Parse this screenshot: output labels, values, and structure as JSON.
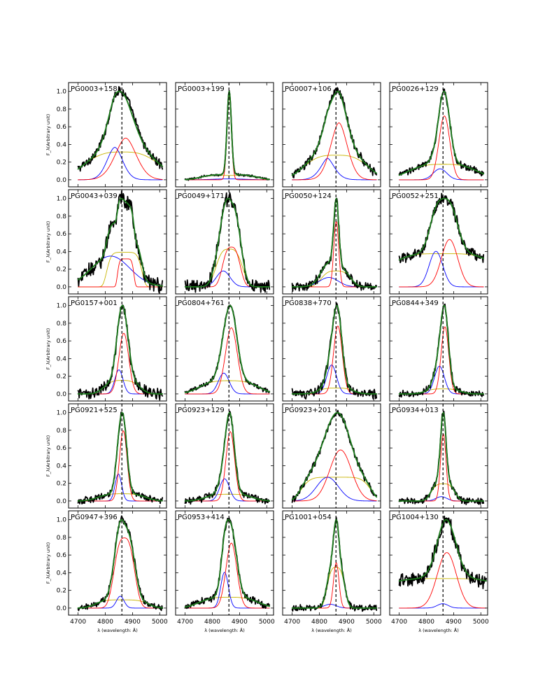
{
  "figure": {
    "xlabel": "λ (wavelength: Å)",
    "ylabel": "F_λ(Arbitrary unit)",
    "xticks": [
      4700,
      4800,
      4900,
      5000
    ],
    "yticks": [
      "0.0",
      "0.2",
      "0.4",
      "0.6",
      "0.8",
      "1.0"
    ],
    "colors": {
      "data": "#000000",
      "fit_total": "#1b7a1b",
      "component_red": "#ff0000",
      "component_blue": "#0000ff",
      "component_yellow": "#c8b400",
      "marker_line": "#000000"
    }
  },
  "chart_data": {
    "type": "line",
    "layout": "grid 5 rows x 4 columns of spectral fit panels",
    "xlim": [
      4665,
      5025
    ],
    "ylim": [
      -0.08,
      1.1
    ],
    "vertical_dashed_line_at": 4861,
    "xlabel": "λ (wavelength: Å)",
    "ylabel": "F_λ(Arbitrary unit)",
    "series_legend": [
      {
        "color": "black",
        "role": "observed spectrum"
      },
      {
        "color": "green",
        "role": "total fit"
      },
      {
        "color": "red",
        "role": "narrow/core component"
      },
      {
        "color": "blue",
        "role": "blue-shifted component"
      },
      {
        "color": "yellow",
        "role": "broad/very-broad component"
      }
    ],
    "panels": [
      {
        "name": "PG0003+158",
        "x0": 4700,
        "x1": 5010,
        "red": {
          "c": 4875,
          "w": 38,
          "h": 0.36,
          "s": 0.9
        },
        "blue": {
          "c": 4835,
          "w": 28,
          "h": 0.28,
          "s": 0.9
        },
        "yellow": {
          "c": 4861,
          "w": 130,
          "h": 0.24,
          "s": 1.5
        },
        "fwhm": 42,
        "noise": 0.04,
        "asym": 8
      },
      {
        "name": "PG0003+199",
        "x0": 4700,
        "x1": 5010,
        "red": {
          "c": 4862,
          "w": 8,
          "h": 0.95,
          "s": 1
        },
        "blue": {
          "c": 4862,
          "w": 60,
          "h": 0.01,
          "s": 1
        },
        "yellow": {
          "c": 4861,
          "w": 100,
          "h": 0.05,
          "s": 2
        },
        "fwhm": 9,
        "noise": 0.01,
        "asym": 0
      },
      {
        "name": "PG0007+106",
        "x0": 4700,
        "x1": 5010,
        "red": {
          "c": 4872,
          "w": 30,
          "h": 0.58,
          "s": 0.9
        },
        "blue": {
          "c": 4830,
          "w": 24,
          "h": 0.22,
          "s": 0.8
        },
        "yellow": {
          "c": 4861,
          "w": 110,
          "h": 0.25,
          "s": 1.6
        },
        "fwhm": 35,
        "noise": 0.04,
        "asym": 5
      },
      {
        "name": "PG0026+129",
        "x0": 4700,
        "x1": 5010,
        "red": {
          "c": 4866,
          "w": 20,
          "h": 0.7,
          "s": 1
        },
        "blue": {
          "c": 4850,
          "w": 25,
          "h": 0.12,
          "s": 1
        },
        "yellow": {
          "c": 4861,
          "w": 120,
          "h": 0.17,
          "s": 1.5
        },
        "fwhm": 22,
        "noise": 0.03,
        "asym": 0
      },
      {
        "name": "PG0043+039",
        "x0": 4700,
        "x1": 5010,
        "red": {
          "c": 4875,
          "w": 28,
          "h": 0.3,
          "s": 3
        },
        "blue": {
          "c": 4820,
          "w": 70,
          "h": 0.33,
          "s": 1
        },
        "yellow": {
          "c": 4870,
          "w": 60,
          "h": 0.37,
          "s": 3
        },
        "fwhm": 48,
        "noise": 0.07,
        "asym": 0
      },
      {
        "name": "PG0049+171",
        "x0": 4700,
        "x1": 5010,
        "red": {
          "c": 4870,
          "w": 30,
          "h": 0.4,
          "s": 1.4
        },
        "blue": {
          "c": 4840,
          "w": 25,
          "h": 0.16,
          "s": 1
        },
        "yellow": {
          "c": 4862,
          "w": 45,
          "h": 0.38,
          "s": 1.6
        },
        "fwhm": 30,
        "noise": 0.06,
        "asym": 0
      },
      {
        "name": "PG0050+124",
        "x0": 4700,
        "x1": 5010,
        "red": {
          "c": 4862,
          "w": 9,
          "h": 0.7,
          "s": 1
        },
        "blue": {
          "c": 4835,
          "w": 35,
          "h": 0.1,
          "s": 1
        },
        "yellow": {
          "c": 4861,
          "w": 50,
          "h": 0.17,
          "s": 1.6
        },
        "fwhm": 10,
        "noise": 0.04,
        "asym": 0
      },
      {
        "name": "PG0052+251",
        "x0": 4700,
        "x1": 5010,
        "red": {
          "c": 4885,
          "w": 30,
          "h": 0.4,
          "s": 1
        },
        "blue": {
          "c": 4835,
          "w": 25,
          "h": 0.3,
          "s": 1
        },
        "yellow": {
          "c": 4861,
          "w": 200,
          "h": 0.28,
          "s": 2
        },
        "fwhm": 35,
        "noise": 0.05,
        "asym": 0
      },
      {
        "name": "PG0157+001",
        "x0": 4700,
        "x1": 5010,
        "red": {
          "c": 4868,
          "w": 18,
          "h": 0.63,
          "s": 1
        },
        "blue": {
          "c": 4850,
          "w": 15,
          "h": 0.25,
          "s": 1
        },
        "yellow": {
          "c": 4861,
          "w": 60,
          "h": 0.14,
          "s": 1.6
        },
        "fwhm": 22,
        "noise": 0.05,
        "asym": 0
      },
      {
        "name": "PG0804+761",
        "x0": 4700,
        "x1": 5010,
        "red": {
          "c": 4870,
          "w": 22,
          "h": 0.7,
          "s": 1
        },
        "blue": {
          "c": 4842,
          "w": 20,
          "h": 0.22,
          "s": 1
        },
        "yellow": {
          "c": 4861,
          "w": 100,
          "h": 0.14,
          "s": 1.6
        },
        "fwhm": 24,
        "noise": 0.02,
        "asym": 0
      },
      {
        "name": "PG0838+770",
        "x0": 4700,
        "x1": 5010,
        "red": {
          "c": 4868,
          "w": 16,
          "h": 0.8,
          "s": 1
        },
        "blue": {
          "c": 4845,
          "w": 18,
          "h": 0.34,
          "s": 1
        },
        "yellow": {
          "c": 4861,
          "w": 60,
          "h": 0.07,
          "s": 1.6
        },
        "fwhm": 18,
        "noise": 0.04,
        "asym": 0
      },
      {
        "name": "PG0844+349",
        "x0": 4700,
        "x1": 5010,
        "red": {
          "c": 4868,
          "w": 14,
          "h": 0.8,
          "s": 1
        },
        "blue": {
          "c": 4848,
          "w": 18,
          "h": 0.33,
          "s": 1
        },
        "yellow": {
          "c": 4861,
          "w": 60,
          "h": 0.06,
          "s": 1.6
        },
        "fwhm": 18,
        "noise": 0.03,
        "asym": 0
      },
      {
        "name": "PG0921+525",
        "x0": 4700,
        "x1": 5010,
        "red": {
          "c": 4866,
          "w": 14,
          "h": 0.78,
          "s": 1
        },
        "blue": {
          "c": 4848,
          "w": 12,
          "h": 0.3,
          "s": 1
        },
        "yellow": {
          "c": 4861,
          "w": 80,
          "h": 0.08,
          "s": 1.6
        },
        "fwhm": 16,
        "noise": 0.03,
        "asym": 0
      },
      {
        "name": "PG0923+129",
        "x0": 4700,
        "x1": 5010,
        "red": {
          "c": 4866,
          "w": 16,
          "h": 0.72,
          "s": 1
        },
        "blue": {
          "c": 4845,
          "w": 18,
          "h": 0.23,
          "s": 1
        },
        "yellow": {
          "c": 4861,
          "w": 80,
          "h": 0.07,
          "s": 1.6
        },
        "fwhm": 18,
        "noise": 0.03,
        "asym": 0
      },
      {
        "name": "PG0923+201",
        "x0": 4700,
        "x1": 5010,
        "red": {
          "c": 4878,
          "w": 40,
          "h": 0.58,
          "s": 1
        },
        "blue": {
          "c": 4830,
          "w": 40,
          "h": 0.27,
          "s": 1
        },
        "yellow": {
          "c": 4861,
          "w": 120,
          "h": 0.27,
          "s": 3
        },
        "fwhm": 55,
        "noise": 0.03,
        "asym": 0
      },
      {
        "name": "PG0934+013",
        "x0": 4700,
        "x1": 5010,
        "red": {
          "c": 4862,
          "w": 10,
          "h": 0.78,
          "s": 1
        },
        "blue": {
          "c": 4855,
          "w": 20,
          "h": 0.05,
          "s": 1
        },
        "yellow": {
          "c": 4861,
          "w": 40,
          "h": 0.2,
          "s": 1.6
        },
        "fwhm": 11,
        "noise": 0.03,
        "asym": 0
      },
      {
        "name": "PG0947+396",
        "x0": 4700,
        "x1": 5010,
        "red": {
          "c": 4870,
          "w": 35,
          "h": 0.77,
          "s": 1.4
        },
        "blue": {
          "c": 4855,
          "w": 14,
          "h": 0.13,
          "s": 1
        },
        "yellow": {
          "c": 4861,
          "w": 90,
          "h": 0.09,
          "s": 2
        },
        "fwhm": 38,
        "noise": 0.03,
        "asym": 4
      },
      {
        "name": "PG0953+414",
        "x0": 4700,
        "x1": 5010,
        "red": {
          "c": 4870,
          "w": 20,
          "h": 0.78,
          "s": 1
        },
        "blue": {
          "c": 4845,
          "w": 14,
          "h": 0.43,
          "s": 1
        },
        "yellow": {
          "c": 4861,
          "w": 100,
          "h": 0.13,
          "s": 1.6
        },
        "fwhm": 22,
        "noise": 0.03,
        "asym": 0
      },
      {
        "name": "PG1001+054",
        "x0": 4700,
        "x1": 5010,
        "red": {
          "c": 4862,
          "w": 10,
          "h": 0.48,
          "s": 1
        },
        "blue": {
          "c": 4840,
          "w": 22,
          "h": 0.04,
          "s": 1
        },
        "yellow": {
          "c": 4861,
          "w": 30,
          "h": 0.43,
          "s": 1.6
        },
        "fwhm": 12,
        "noise": 0.03,
        "asym": 0
      },
      {
        "name": "PG1004+130",
        "x0": 4700,
        "x1": 5020,
        "red": {
          "c": 4875,
          "w": 35,
          "h": 0.64,
          "s": 1
        },
        "blue": {
          "c": 4860,
          "w": 20,
          "h": 0.05,
          "s": 1
        },
        "yellow": {
          "c": 4861,
          "w": 250,
          "h": 0.34,
          "s": 2
        },
        "fwhm": 60,
        "noise": 0.07,
        "asym": 0
      }
    ]
  }
}
